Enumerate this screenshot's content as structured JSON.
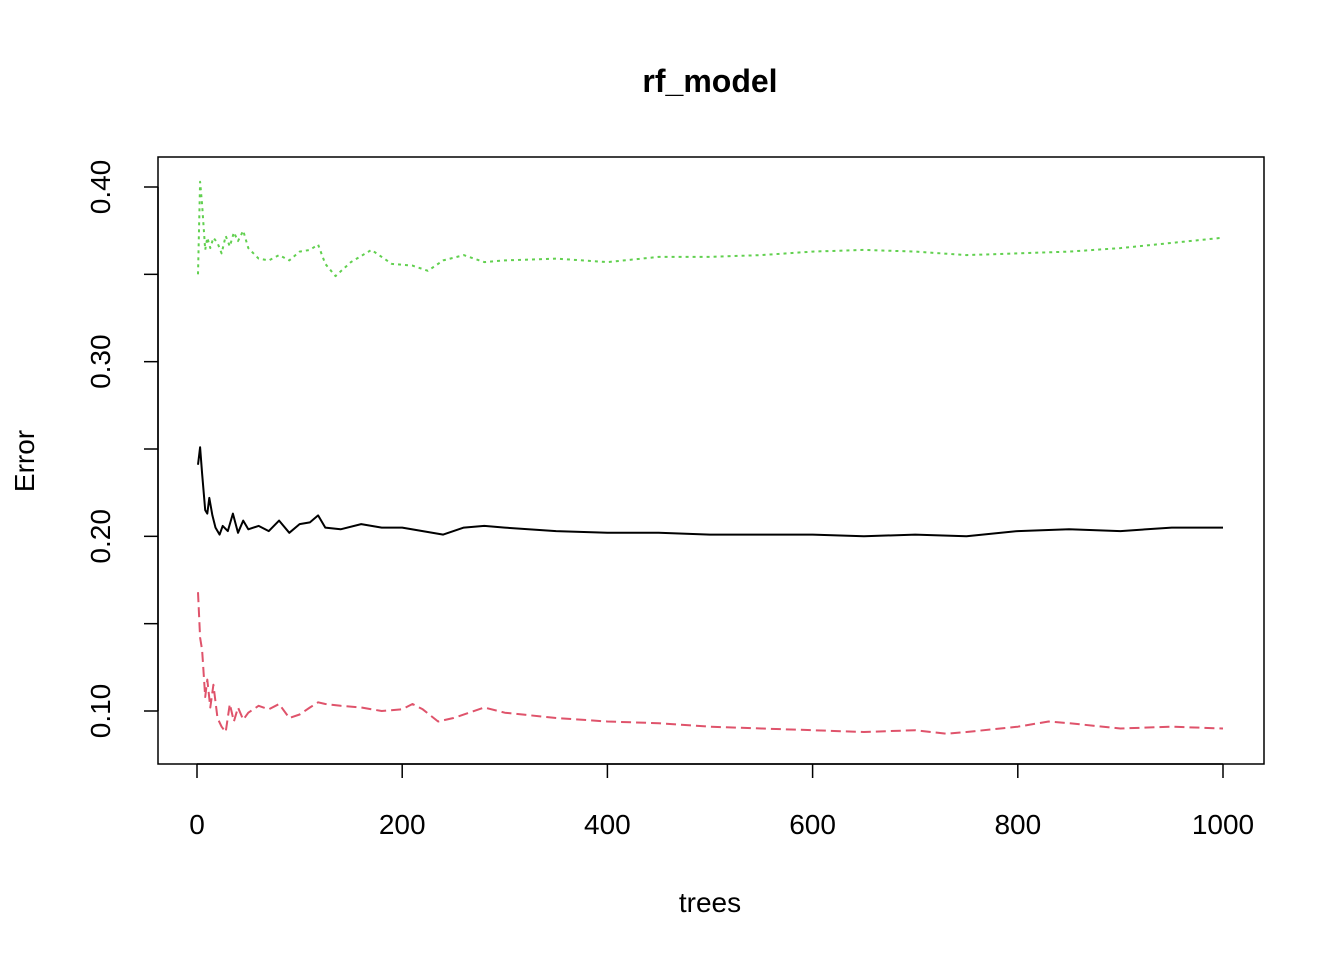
{
  "chart_data": {
    "type": "line",
    "title": "rf_model",
    "xlabel": "trees",
    "ylabel": "Error",
    "xlim": [
      0,
      1000
    ],
    "ylim": [
      0.07,
      0.41
    ],
    "x_ticks": [
      0,
      200,
      400,
      600,
      800,
      1000
    ],
    "x_tick_labels": [
      "0",
      "200",
      "400",
      "600",
      "800",
      "1000"
    ],
    "y_ticks": [
      0.1,
      0.15,
      0.2,
      0.25,
      0.3,
      0.35,
      0.4
    ],
    "y_tick_labels": [
      "0.10",
      "",
      "0.20",
      "",
      "0.30",
      "",
      "0.40"
    ],
    "grid": false,
    "series": [
      {
        "color": "#000000",
        "dash": "solid",
        "x": [
          1,
          3,
          5,
          8,
          10,
          12,
          15,
          18,
          22,
          25,
          30,
          35,
          40,
          45,
          50,
          60,
          70,
          80,
          90,
          100,
          110,
          118,
          125,
          140,
          160,
          180,
          200,
          220,
          240,
          260,
          280,
          300,
          350,
          400,
          450,
          500,
          550,
          600,
          650,
          700,
          750,
          800,
          850,
          900,
          950,
          1000
        ],
        "y": [
          0.241,
          0.251,
          0.236,
          0.215,
          0.213,
          0.222,
          0.212,
          0.205,
          0.201,
          0.206,
          0.203,
          0.213,
          0.202,
          0.209,
          0.204,
          0.206,
          0.203,
          0.209,
          0.202,
          0.207,
          0.208,
          0.212,
          0.205,
          0.204,
          0.207,
          0.205,
          0.205,
          0.203,
          0.201,
          0.205,
          0.206,
          0.205,
          0.203,
          0.202,
          0.202,
          0.201,
          0.201,
          0.201,
          0.2,
          0.201,
          0.2,
          0.203,
          0.204,
          0.203,
          0.205,
          0.205
        ]
      },
      {
        "color": "#DF536B",
        "dash": "dashed",
        "x": [
          1,
          3,
          5,
          8,
          10,
          13,
          16,
          20,
          24,
          28,
          32,
          36,
          40,
          45,
          50,
          60,
          70,
          80,
          90,
          100,
          110,
          118,
          125,
          140,
          160,
          180,
          200,
          210,
          220,
          235,
          250,
          280,
          300,
          350,
          400,
          450,
          500,
          550,
          600,
          650,
          700,
          730,
          750,
          800,
          830,
          850,
          900,
          950,
          1000
        ],
        "y": [
          0.168,
          0.142,
          0.135,
          0.108,
          0.118,
          0.102,
          0.115,
          0.096,
          0.091,
          0.088,
          0.104,
          0.094,
          0.102,
          0.095,
          0.099,
          0.103,
          0.101,
          0.104,
          0.096,
          0.098,
          0.102,
          0.105,
          0.104,
          0.103,
          0.102,
          0.1,
          0.101,
          0.104,
          0.101,
          0.094,
          0.096,
          0.102,
          0.099,
          0.096,
          0.094,
          0.093,
          0.091,
          0.09,
          0.089,
          0.088,
          0.089,
          0.087,
          0.088,
          0.091,
          0.094,
          0.093,
          0.09,
          0.091,
          0.09
        ]
      },
      {
        "color": "#61D04F",
        "dash": "dotted",
        "x": [
          1,
          3,
          5,
          8,
          10,
          13,
          16,
          20,
          24,
          28,
          32,
          36,
          40,
          45,
          50,
          60,
          70,
          80,
          90,
          100,
          110,
          118,
          125,
          135,
          150,
          170,
          190,
          210,
          225,
          240,
          260,
          280,
          300,
          350,
          400,
          450,
          500,
          550,
          600,
          650,
          700,
          750,
          800,
          850,
          900,
          950,
          1000
        ],
        "y": [
          0.35,
          0.403,
          0.39,
          0.364,
          0.371,
          0.365,
          0.371,
          0.368,
          0.362,
          0.372,
          0.366,
          0.374,
          0.369,
          0.375,
          0.365,
          0.359,
          0.358,
          0.361,
          0.358,
          0.363,
          0.364,
          0.367,
          0.356,
          0.349,
          0.357,
          0.364,
          0.356,
          0.355,
          0.352,
          0.358,
          0.361,
          0.357,
          0.358,
          0.359,
          0.357,
          0.36,
          0.36,
          0.361,
          0.363,
          0.364,
          0.363,
          0.361,
          0.362,
          0.363,
          0.365,
          0.368,
          0.371
        ]
      }
    ]
  }
}
